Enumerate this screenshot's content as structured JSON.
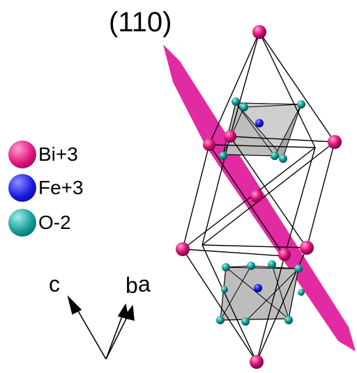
{
  "title": "(110)",
  "legend": [
    {
      "label": "Bi+3",
      "color": "#e0147a"
    },
    {
      "label": "Fe+3",
      "color": "#1414e6"
    },
    {
      "label": "O-2",
      "color": "#0f8f8f"
    }
  ],
  "axes": {
    "c": "c",
    "b": "b",
    "a": "a"
  },
  "colors": {
    "plane": "#e0199a",
    "bi": "#e0147a",
    "fe": "#1a1ae0",
    "o": "#139a96",
    "octahedron": "#bdbdbd",
    "bond": "#000000"
  }
}
